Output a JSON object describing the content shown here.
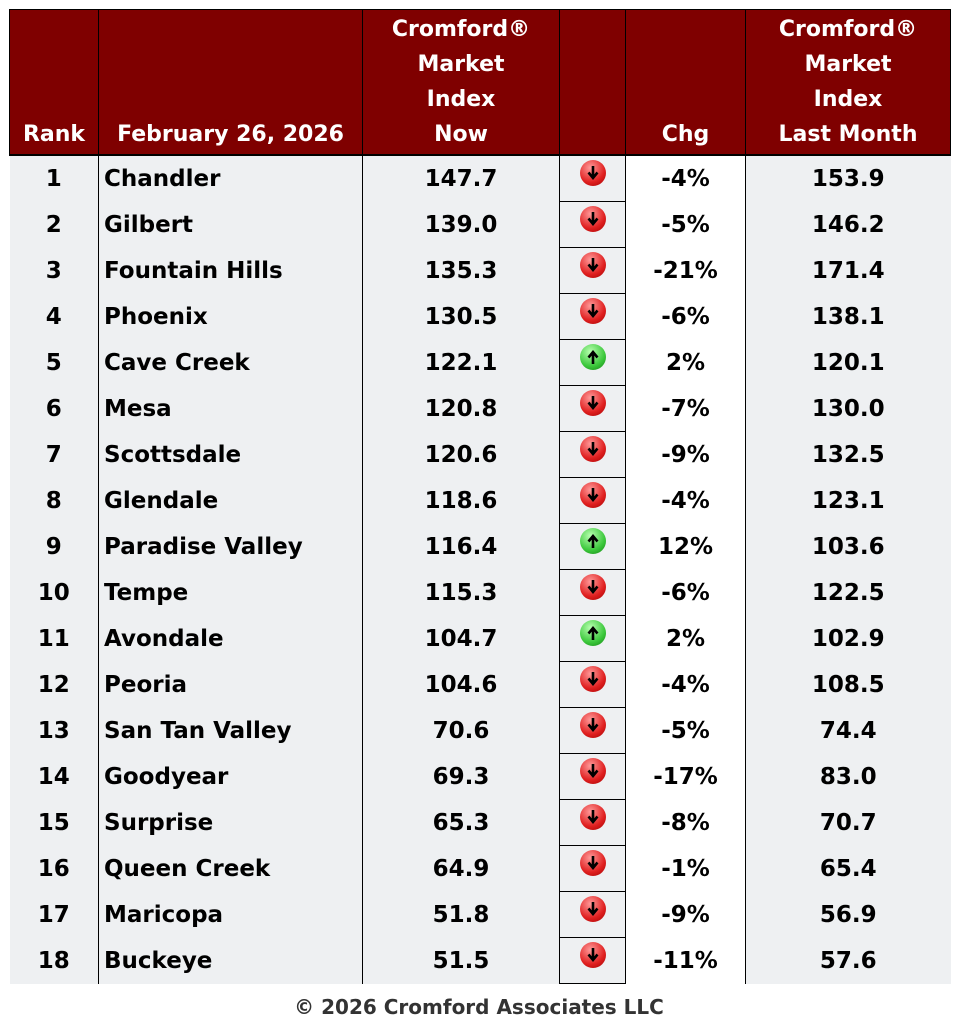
{
  "header": {
    "rank": "Rank",
    "date": "February 26, 2026",
    "now": [
      "Cromford®",
      "Market",
      "Index",
      "Now"
    ],
    "chg": "Chg",
    "last": [
      "Cromford®",
      "Market",
      "Index",
      "Last Month"
    ]
  },
  "colors": {
    "header_bg": "#7f0000",
    "down": "#e02020",
    "up": "#3cc83c"
  },
  "rows": [
    {
      "rank": "1",
      "city": "Chandler",
      "now": "147.7",
      "dir": "down",
      "chg": "-4%",
      "last": "153.9"
    },
    {
      "rank": "2",
      "city": "Gilbert",
      "now": "139.0",
      "dir": "down",
      "chg": "-5%",
      "last": "146.2"
    },
    {
      "rank": "3",
      "city": "Fountain Hills",
      "now": "135.3",
      "dir": "down",
      "chg": "-21%",
      "last": "171.4"
    },
    {
      "rank": "4",
      "city": "Phoenix",
      "now": "130.5",
      "dir": "down",
      "chg": "-6%",
      "last": "138.1"
    },
    {
      "rank": "5",
      "city": "Cave Creek",
      "now": "122.1",
      "dir": "up",
      "chg": "2%",
      "last": "120.1"
    },
    {
      "rank": "6",
      "city": "Mesa",
      "now": "120.8",
      "dir": "down",
      "chg": "-7%",
      "last": "130.0"
    },
    {
      "rank": "7",
      "city": "Scottsdale",
      "now": "120.6",
      "dir": "down",
      "chg": "-9%",
      "last": "132.5"
    },
    {
      "rank": "8",
      "city": "Glendale",
      "now": "118.6",
      "dir": "down",
      "chg": "-4%",
      "last": "123.1"
    },
    {
      "rank": "9",
      "city": "Paradise Valley",
      "now": "116.4",
      "dir": "up",
      "chg": "12%",
      "last": "103.6"
    },
    {
      "rank": "10",
      "city": "Tempe",
      "now": "115.3",
      "dir": "down",
      "chg": "-6%",
      "last": "122.5"
    },
    {
      "rank": "11",
      "city": "Avondale",
      "now": "104.7",
      "dir": "up",
      "chg": "2%",
      "last": "102.9"
    },
    {
      "rank": "12",
      "city": "Peoria",
      "now": "104.6",
      "dir": "down",
      "chg": "-4%",
      "last": "108.5"
    },
    {
      "rank": "13",
      "city": "San Tan Valley",
      "now": "70.6",
      "dir": "down",
      "chg": "-5%",
      "last": "74.4"
    },
    {
      "rank": "14",
      "city": "Goodyear",
      "now": "69.3",
      "dir": "down",
      "chg": "-17%",
      "last": "83.0"
    },
    {
      "rank": "15",
      "city": "Surprise",
      "now": "65.3",
      "dir": "down",
      "chg": "-8%",
      "last": "70.7"
    },
    {
      "rank": "16",
      "city": "Queen Creek",
      "now": "64.9",
      "dir": "down",
      "chg": "-1%",
      "last": "65.4"
    },
    {
      "rank": "17",
      "city": "Maricopa",
      "now": "51.8",
      "dir": "down",
      "chg": "-9%",
      "last": "56.9"
    },
    {
      "rank": "18",
      "city": "Buckeye",
      "now": "51.5",
      "dir": "down",
      "chg": "-11%",
      "last": "57.6"
    }
  ],
  "footer": "© 2026 Cromford Associates LLC"
}
